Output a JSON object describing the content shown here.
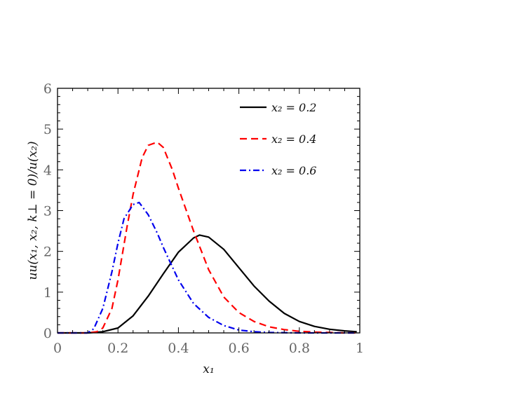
{
  "chart_data": {
    "type": "line",
    "xlabel": "x₁",
    "ylabel": "uu(x₁, x₂, k⊥ = 0)/u(x₂)",
    "xlim": [
      0,
      1
    ],
    "ylim": [
      0,
      6
    ],
    "xticks": [
      0,
      0.2,
      0.4,
      0.6,
      0.8,
      1
    ],
    "xtick_labels": [
      "0",
      "0.2",
      "0.4",
      "0.6",
      "0.8",
      "1"
    ],
    "yticks": [
      0,
      1,
      2,
      3,
      4,
      5,
      6
    ],
    "ytick_labels": [
      "0",
      "1",
      "2",
      "3",
      "4",
      "5",
      "6"
    ],
    "legend_position": "top-right",
    "grid": false,
    "series": [
      {
        "name": "x₂ = 0.2",
        "color": "#000000",
        "dash": "solid",
        "x": [
          0.0,
          0.1,
          0.15,
          0.2,
          0.25,
          0.3,
          0.35,
          0.4,
          0.45,
          0.47,
          0.5,
          0.55,
          0.6,
          0.65,
          0.7,
          0.75,
          0.8,
          0.85,
          0.9,
          0.95,
          0.99
        ],
        "y": [
          0.0,
          0.0,
          0.03,
          0.12,
          0.42,
          0.9,
          1.45,
          1.98,
          2.33,
          2.4,
          2.35,
          2.05,
          1.6,
          1.15,
          0.78,
          0.48,
          0.28,
          0.16,
          0.09,
          0.05,
          0.03
        ]
      },
      {
        "name": "x₂ = 0.4",
        "color": "#ff0000",
        "dash": "dashed",
        "x": [
          0.0,
          0.1,
          0.13,
          0.15,
          0.18,
          0.2,
          0.23,
          0.25,
          0.28,
          0.3,
          0.33,
          0.35,
          0.38,
          0.4,
          0.45,
          0.5,
          0.55,
          0.6,
          0.65,
          0.7,
          0.75,
          0.8,
          0.85,
          0.9,
          0.95,
          0.99
        ],
        "y": [
          0.0,
          0.0,
          0.03,
          0.12,
          0.6,
          1.3,
          2.6,
          3.4,
          4.3,
          4.6,
          4.68,
          4.55,
          4.0,
          3.55,
          2.5,
          1.55,
          0.88,
          0.5,
          0.28,
          0.15,
          0.08,
          0.04,
          0.02,
          0.01,
          0.0,
          0.0
        ]
      },
      {
        "name": "x₂ = 0.6",
        "color": "#0000ee",
        "dash": "dash-dot",
        "x": [
          0.0,
          0.1,
          0.12,
          0.15,
          0.18,
          0.2,
          0.22,
          0.25,
          0.27,
          0.3,
          0.33,
          0.35,
          0.4,
          0.45,
          0.5,
          0.55,
          0.6,
          0.65,
          0.7,
          0.8,
          0.9,
          0.99
        ],
        "y": [
          0.0,
          0.0,
          0.1,
          0.6,
          1.5,
          2.2,
          2.8,
          3.15,
          3.2,
          2.9,
          2.45,
          2.1,
          1.3,
          0.72,
          0.38,
          0.18,
          0.07,
          0.03,
          0.01,
          0.0,
          0.0,
          0.0
        ]
      }
    ]
  }
}
